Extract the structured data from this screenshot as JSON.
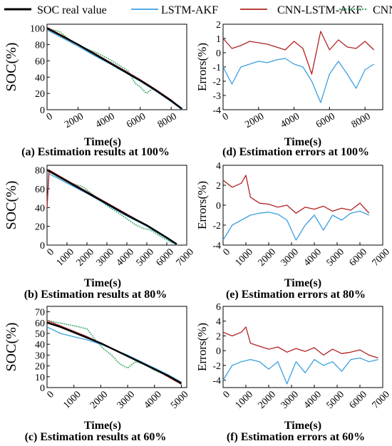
{
  "legend": [
    {
      "label": "SOC real value",
      "color": "#000000",
      "style": "solid"
    },
    {
      "label": "LSTM-AKF",
      "color": "#3aa0e0",
      "style": "solid"
    },
    {
      "label": "CNN-LSTM-AKF",
      "color": "#b22222",
      "style": "solid"
    },
    {
      "label": "CNN",
      "color": "#2e9e5b",
      "style": "dotted"
    }
  ],
  "chart_data": [
    {
      "type": "line",
      "caption": "(a) Estimation results at 100%",
      "xlabel": "Time(s)",
      "ylabel": "SOC(%)",
      "xlim": [
        0,
        9000
      ],
      "ylim": [
        0,
        105
      ],
      "xticks": [
        0,
        2000,
        4000,
        6000,
        8000
      ],
      "yticks": [
        0,
        20,
        40,
        60,
        80,
        100
      ],
      "series": [
        {
          "name": "SOC real value",
          "x": [
            0,
            1000,
            2000,
            3000,
            4000,
            5000,
            6000,
            7000,
            8000,
            8700
          ],
          "y": [
            100,
            90,
            80,
            69,
            58,
            47,
            36,
            24,
            11,
            1
          ]
        },
        {
          "name": "LSTM-AKF",
          "x": [
            0,
            1000,
            2000,
            3000,
            4000,
            5000,
            6000,
            7000,
            8000,
            8700
          ],
          "y": [
            98,
            88,
            78,
            67,
            57,
            46,
            35,
            23,
            10,
            0
          ]
        },
        {
          "name": "CNN-LSTM-AKF",
          "x": [
            0,
            1000,
            2000,
            3000,
            4000,
            5000,
            6000,
            7000,
            8000,
            8700
          ],
          "y": [
            101,
            91,
            80,
            70,
            59,
            48,
            37,
            25,
            12,
            1
          ]
        },
        {
          "name": "CNN",
          "x": [
            0,
            800,
            1600,
            2400,
            3200,
            4000,
            4600,
            5200,
            5700,
            6000,
            6400,
            6800,
            7400,
            8000,
            8600
          ],
          "y": [
            100,
            96,
            84,
            76,
            70,
            62,
            55,
            48,
            32,
            28,
            20,
            26,
            18,
            10,
            2
          ]
        }
      ]
    },
    {
      "type": "line",
      "caption": "(d) Estimation errors at 100%",
      "xlabel": "Time(s)",
      "ylabel": "Errors(%)",
      "xlim": [
        0,
        9000
      ],
      "ylim": [
        -4,
        2
      ],
      "xticks": [
        0,
        2000,
        4000,
        6000,
        8000
      ],
      "yticks": [
        -4,
        -3,
        -2,
        -1,
        0,
        1,
        2
      ],
      "series": [
        {
          "name": "LSTM-AKF",
          "x": [
            0,
            500,
            1000,
            1500,
            2000,
            2500,
            3000,
            3500,
            4000,
            4500,
            5000,
            5500,
            6000,
            6500,
            7000,
            7500,
            8000,
            8500
          ],
          "y": [
            -1.0,
            -2.2,
            -1.0,
            -0.8,
            -0.6,
            -0.7,
            -0.5,
            -0.4,
            -0.8,
            -1.0,
            -2.0,
            -3.5,
            -1.5,
            -0.6,
            -1.5,
            -2.5,
            -1.2,
            -0.8
          ]
        },
        {
          "name": "CNN-LSTM-AKF",
          "x": [
            0,
            500,
            1000,
            1500,
            2000,
            2500,
            3000,
            3500,
            4000,
            4500,
            5000,
            5500,
            6000,
            6500,
            7000,
            7500,
            8000,
            8500
          ],
          "y": [
            1.0,
            0.3,
            0.5,
            0.8,
            0.7,
            0.6,
            0.4,
            0.2,
            0.8,
            0.3,
            -1.5,
            1.5,
            0.2,
            0.9,
            0.4,
            0.3,
            0.8,
            0.2
          ]
        }
      ]
    },
    {
      "type": "line",
      "caption": "(b) Estimation results at 80%",
      "xlabel": "Time(s)",
      "ylabel": "SOC(%)",
      "xlim": [
        0,
        7000
      ],
      "ylim": [
        0,
        85
      ],
      "xticks": [
        0,
        1000,
        2000,
        3000,
        4000,
        5000,
        6000,
        7000
      ],
      "yticks": [
        0,
        20,
        40,
        60,
        80
      ],
      "series": [
        {
          "name": "SOC real value",
          "x": [
            0,
            1000,
            2000,
            3000,
            4000,
            5000,
            6000,
            6500
          ],
          "y": [
            80,
            68,
            56,
            44,
            32,
            21,
            8,
            1
          ]
        },
        {
          "name": "LSTM-AKF",
          "x": [
            0,
            100,
            1000,
            2000,
            3000,
            4000,
            5000,
            6000,
            6500
          ],
          "y": [
            40,
            76,
            66,
            55,
            43,
            31,
            20,
            7,
            0
          ]
        },
        {
          "name": "CNN-LSTM-AKF",
          "x": [
            0,
            100,
            1000,
            2000,
            3000,
            4000,
            5000,
            6000,
            6500
          ],
          "y": [
            40,
            80,
            69,
            57,
            45,
            33,
            21,
            8,
            1
          ]
        },
        {
          "name": "CNN",
          "x": [
            0,
            600,
            1200,
            1800,
            2400,
            3000,
            3600,
            4000,
            4400,
            4800,
            5200,
            5800,
            6300
          ],
          "y": [
            80,
            72,
            66,
            62,
            52,
            42,
            34,
            28,
            22,
            18,
            16,
            8,
            2
          ]
        }
      ]
    },
    {
      "type": "line",
      "caption": "(e) Estimation errors at 80%",
      "xlabel": "Time(s)",
      "ylabel": "Errors(%)",
      "xlim": [
        0,
        7000
      ],
      "ylim": [
        -4,
        4
      ],
      "xticks": [
        0,
        1000,
        2000,
        3000,
        4000,
        5000,
        6000,
        7000
      ],
      "yticks": [
        -4,
        -2,
        0,
        2,
        4
      ],
      "series": [
        {
          "name": "LSTM-AKF",
          "x": [
            0,
            400,
            800,
            1200,
            1600,
            2000,
            2400,
            2800,
            3200,
            3600,
            4000,
            4400,
            4800,
            5200,
            5600,
            6000,
            6400
          ],
          "y": [
            -3.5,
            -2.0,
            -1.5,
            -1.0,
            -0.8,
            -0.7,
            -0.9,
            -1.5,
            -3.5,
            -2.0,
            -1.0,
            -2.5,
            -1.0,
            -1.5,
            -0.8,
            -0.6,
            -1.0
          ]
        },
        {
          "name": "CNN-LSTM-AKF",
          "x": [
            0,
            400,
            800,
            1000,
            1200,
            1600,
            2000,
            2400,
            2800,
            3200,
            3600,
            4000,
            4400,
            4800,
            5200,
            5600,
            6000,
            6400
          ],
          "y": [
            2.5,
            1.8,
            2.2,
            3.0,
            0.8,
            0.2,
            0.1,
            -0.2,
            0.0,
            -0.8,
            -0.2,
            -0.4,
            -0.1,
            -0.6,
            -0.3,
            -0.5,
            0.2,
            -0.8
          ]
        }
      ]
    },
    {
      "type": "line",
      "caption": "(c) Estimation results at 60%",
      "xlabel": "Time(s)",
      "ylabel": "SOC(%)",
      "xlim": [
        0,
        5200
      ],
      "ylim": [
        0,
        75
      ],
      "xticks": [
        0,
        1000,
        2000,
        3000,
        4000,
        5000
      ],
      "yticks": [
        0,
        10,
        20,
        30,
        40,
        50,
        60,
        70
      ],
      "series": [
        {
          "name": "SOC real value",
          "x": [
            0,
            500,
            1000,
            1500,
            2000,
            2500,
            3000,
            3500,
            4000,
            4500,
            5000
          ],
          "y": [
            60,
            56,
            51,
            46,
            41,
            35,
            29,
            23,
            17,
            11,
            4
          ]
        },
        {
          "name": "LSTM-AKF",
          "x": [
            0,
            500,
            1000,
            1500,
            2000,
            2500,
            3000,
            3500,
            4000,
            4500,
            5000
          ],
          "y": [
            56,
            50,
            47,
            44,
            40,
            35,
            30,
            24,
            18,
            12,
            5
          ]
        },
        {
          "name": "CNN-LSTM-AKF",
          "x": [
            0,
            500,
            1000,
            1500,
            2000,
            2500,
            3000,
            3500,
            4000,
            4500,
            5000
          ],
          "y": [
            62,
            57,
            52,
            47,
            41,
            35,
            29,
            23,
            17,
            10,
            3
          ]
        },
        {
          "name": "CNN",
          "x": [
            0,
            400,
            800,
            1200,
            1500,
            1800,
            2100,
            2400,
            2700,
            3000,
            3300,
            3600,
            4000,
            4400,
            4800
          ],
          "y": [
            62,
            60,
            58,
            56,
            54,
            44,
            36,
            30,
            22,
            18,
            24,
            22,
            16,
            12,
            6
          ]
        }
      ]
    },
    {
      "type": "line",
      "caption": "(f) Estimation errors at 60%",
      "xlabel": "Time(s)",
      "ylabel": "Errors(%)",
      "xlim": [
        0,
        7000
      ],
      "ylim": [
        -5,
        6
      ],
      "xticks": [
        0,
        1000,
        2000,
        3000,
        4000,
        5000,
        6000,
        7000
      ],
      "yticks": [
        -4,
        -2,
        0,
        2,
        4,
        6
      ],
      "series": [
        {
          "name": "LSTM-AKF",
          "x": [
            0,
            400,
            800,
            1200,
            1600,
            2000,
            2400,
            2800,
            3200,
            3600,
            4000,
            4400,
            4800,
            5200,
            5600,
            6000,
            6400,
            6800
          ],
          "y": [
            -4.0,
            -2.0,
            -1.5,
            -1.2,
            -1.5,
            -2.5,
            -1.5,
            -4.5,
            -1.5,
            -3.0,
            -1.2,
            -2.0,
            -1.5,
            -2.8,
            -1.2,
            -1.0,
            -1.5,
            -1.2
          ]
        },
        {
          "name": "CNN-LSTM-AKF",
          "x": [
            0,
            400,
            800,
            1000,
            1200,
            1600,
            2000,
            2400,
            2800,
            3200,
            3600,
            4000,
            4400,
            4800,
            5200,
            5600,
            6000,
            6400,
            6800
          ],
          "y": [
            2.5,
            2.0,
            2.5,
            3.2,
            1.0,
            0.6,
            0.2,
            0.5,
            -0.2,
            0.3,
            -0.1,
            0.4,
            -0.6,
            0.2,
            -0.4,
            -0.2,
            0.1,
            -0.6,
            -1.0
          ]
        }
      ]
    }
  ]
}
